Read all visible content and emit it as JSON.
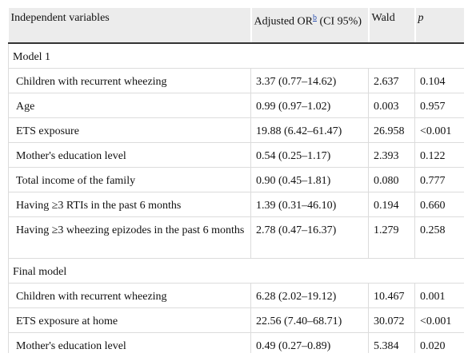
{
  "table": {
    "header": {
      "variables": "Independent variables",
      "or": "Adjusted OR",
      "or_sup": "b",
      "or_suffix": " (CI 95%)",
      "wald": "Wald",
      "p": "p"
    },
    "groups": [
      {
        "label": "Model 1",
        "rows": [
          [
            "Children with recurrent wheezing",
            "3.37 (0.77–14.62)",
            "2.637",
            "0.104"
          ],
          [
            "Age",
            "0.99 (0.97–1.02)",
            "0.003",
            "0.957"
          ],
          [
            "ETS exposure",
            "19.88 (6.42–61.47)",
            "26.958",
            "<0.001"
          ],
          [
            "Mother's education level",
            "0.54 (0.25–1.17)",
            "2.393",
            "0.122"
          ],
          [
            "Total income of the family",
            "0.90 (0.45–1.81)",
            "0.080",
            "0.777"
          ],
          [
            "Having ≥3 RTIs in the past 6 months",
            "1.39 (0.31–46.10)",
            "0.194",
            "0.660"
          ],
          [
            "Having ≥3 wheezing epizodes in the past 6 months",
            "2.78 (0.47–16.37)",
            "1.279",
            "0.258"
          ]
        ]
      },
      {
        "label": "Final model",
        "rows": [
          [
            "Children with recurrent wheezing",
            "6.28 (2.02–19.12)",
            "10.467",
            "0.001"
          ],
          [
            "ETS exposure at home",
            "22.56 (7.40–68.71)",
            "30.072",
            "<0.001"
          ],
          [
            "Mother's education level",
            "0.49 (0.27–0.89)",
            "5.384",
            "0.020"
          ]
        ]
      }
    ]
  }
}
